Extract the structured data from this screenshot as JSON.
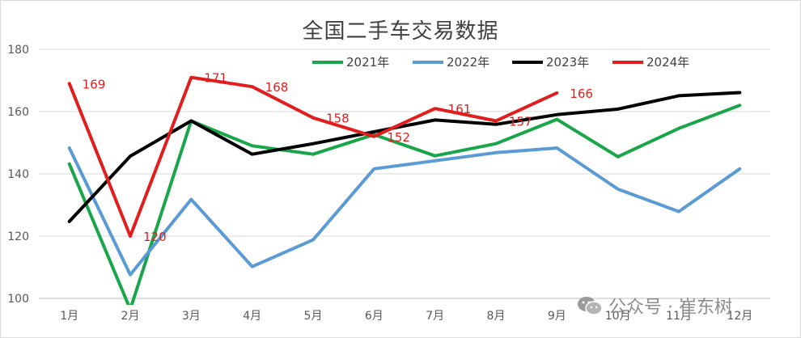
{
  "chart_data": {
    "type": "line",
    "title": "全国二手车交易数据",
    "categories": [
      "1月",
      "2月",
      "3月",
      "4月",
      "5月",
      "6月",
      "7月",
      "8月",
      "9月",
      "10月",
      "11月",
      "12月"
    ],
    "ylim": [
      100,
      180
    ],
    "yticks": [
      100,
      120,
      140,
      160,
      180
    ],
    "grid": true,
    "legend_position": "top",
    "series": [
      {
        "name": "2021年",
        "color": "#19a64a",
        "values": [
          143.2,
          96.5,
          157,
          149,
          146.3,
          152.6,
          145.8,
          149.7,
          157.5,
          145.5,
          154.6,
          162
        ]
      },
      {
        "name": "2022年",
        "color": "#5b9bd5",
        "values": [
          148.3,
          107.6,
          131.8,
          110.2,
          118.8,
          141.6,
          144.2,
          146.8,
          148.3,
          135.1,
          127.9,
          141.6
        ]
      },
      {
        "name": "2023年",
        "color": "#000000",
        "values": [
          124.7,
          145.7,
          157,
          146.3,
          149.7,
          153.5,
          157.3,
          155.9,
          159,
          160.8,
          165.1,
          166.1
        ]
      },
      {
        "name": "2024年",
        "color": "#e01e1e",
        "values": [
          169,
          120,
          171,
          168,
          158,
          152,
          161,
          157,
          166,
          null,
          null,
          null
        ],
        "data_labels": [
          "169",
          "120",
          "171",
          "168",
          "158",
          "152",
          "161",
          "157",
          "166"
        ]
      }
    ]
  },
  "watermark": {
    "text": "公众号 · 崔东树"
  }
}
